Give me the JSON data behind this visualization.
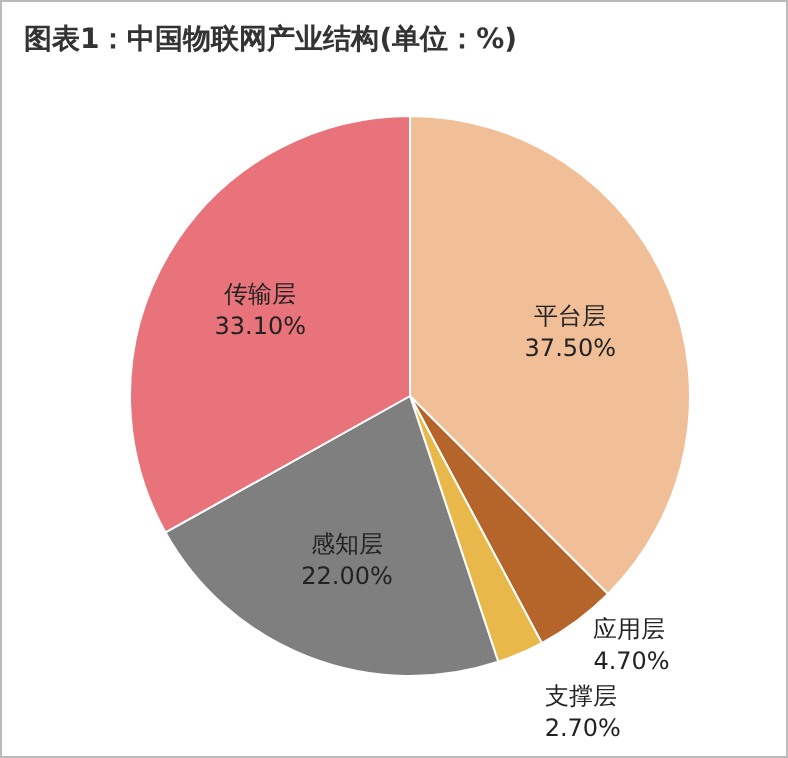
{
  "chart_data": {
    "type": "pie",
    "title": "图表1：中国物联网产业结构(单位：%)",
    "categories": [
      "平台层",
      "应用层",
      "支撑层",
      "感知层",
      "传输层"
    ],
    "values": [
      37.5,
      4.7,
      2.7,
      22.0,
      33.1
    ],
    "value_labels": [
      "37.50%",
      "4.70%",
      "2.70%",
      "22.00%",
      "33.10%"
    ],
    "colors": [
      "#f0bf98",
      "#b5642a",
      "#e8b84a",
      "#7f7f7f",
      "#e8737b"
    ]
  }
}
